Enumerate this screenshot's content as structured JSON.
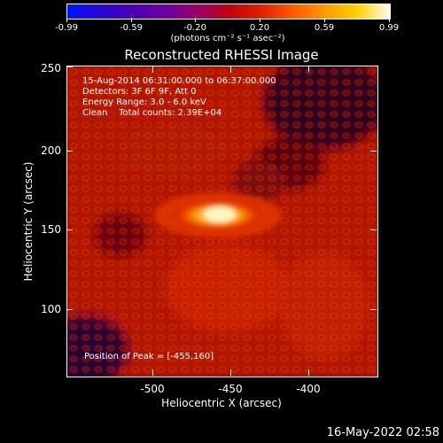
{
  "colorbar": {
    "tick_labels": [
      "-0.99",
      "-0.59",
      "-0.20",
      "0.20",
      "0.59",
      "0.99"
    ],
    "unit_label": "(photons cm⁻² s⁻¹ asec⁻²)"
  },
  "title": "Reconstructed RHESSI Image",
  "info": {
    "line1": "15-Aug-2014 06:31:00.000 to 06:37:00.000",
    "line2": "Detectors: 3F 6F 9F, Att 0",
    "line3": "Energy Range: 3.0 - 6.0 keV",
    "line4": "Clean    Total counts: 2.39E+04"
  },
  "peak_label": "Position of Peak = [-455,160]",
  "axes": {
    "xlabel": "Heliocentric X (arcsec)",
    "ylabel": "Heliocentric Y (arcsec)",
    "xticks": [
      "-500",
      "-450",
      "-400"
    ],
    "yticks": [
      "250",
      "200",
      "150",
      "100"
    ]
  },
  "timestamp": "16-May-2022 02:58",
  "colors": {
    "background": "#000000",
    "text": "#ffffff",
    "peak": "#fff6c0",
    "map_base": "#a01000"
  }
}
